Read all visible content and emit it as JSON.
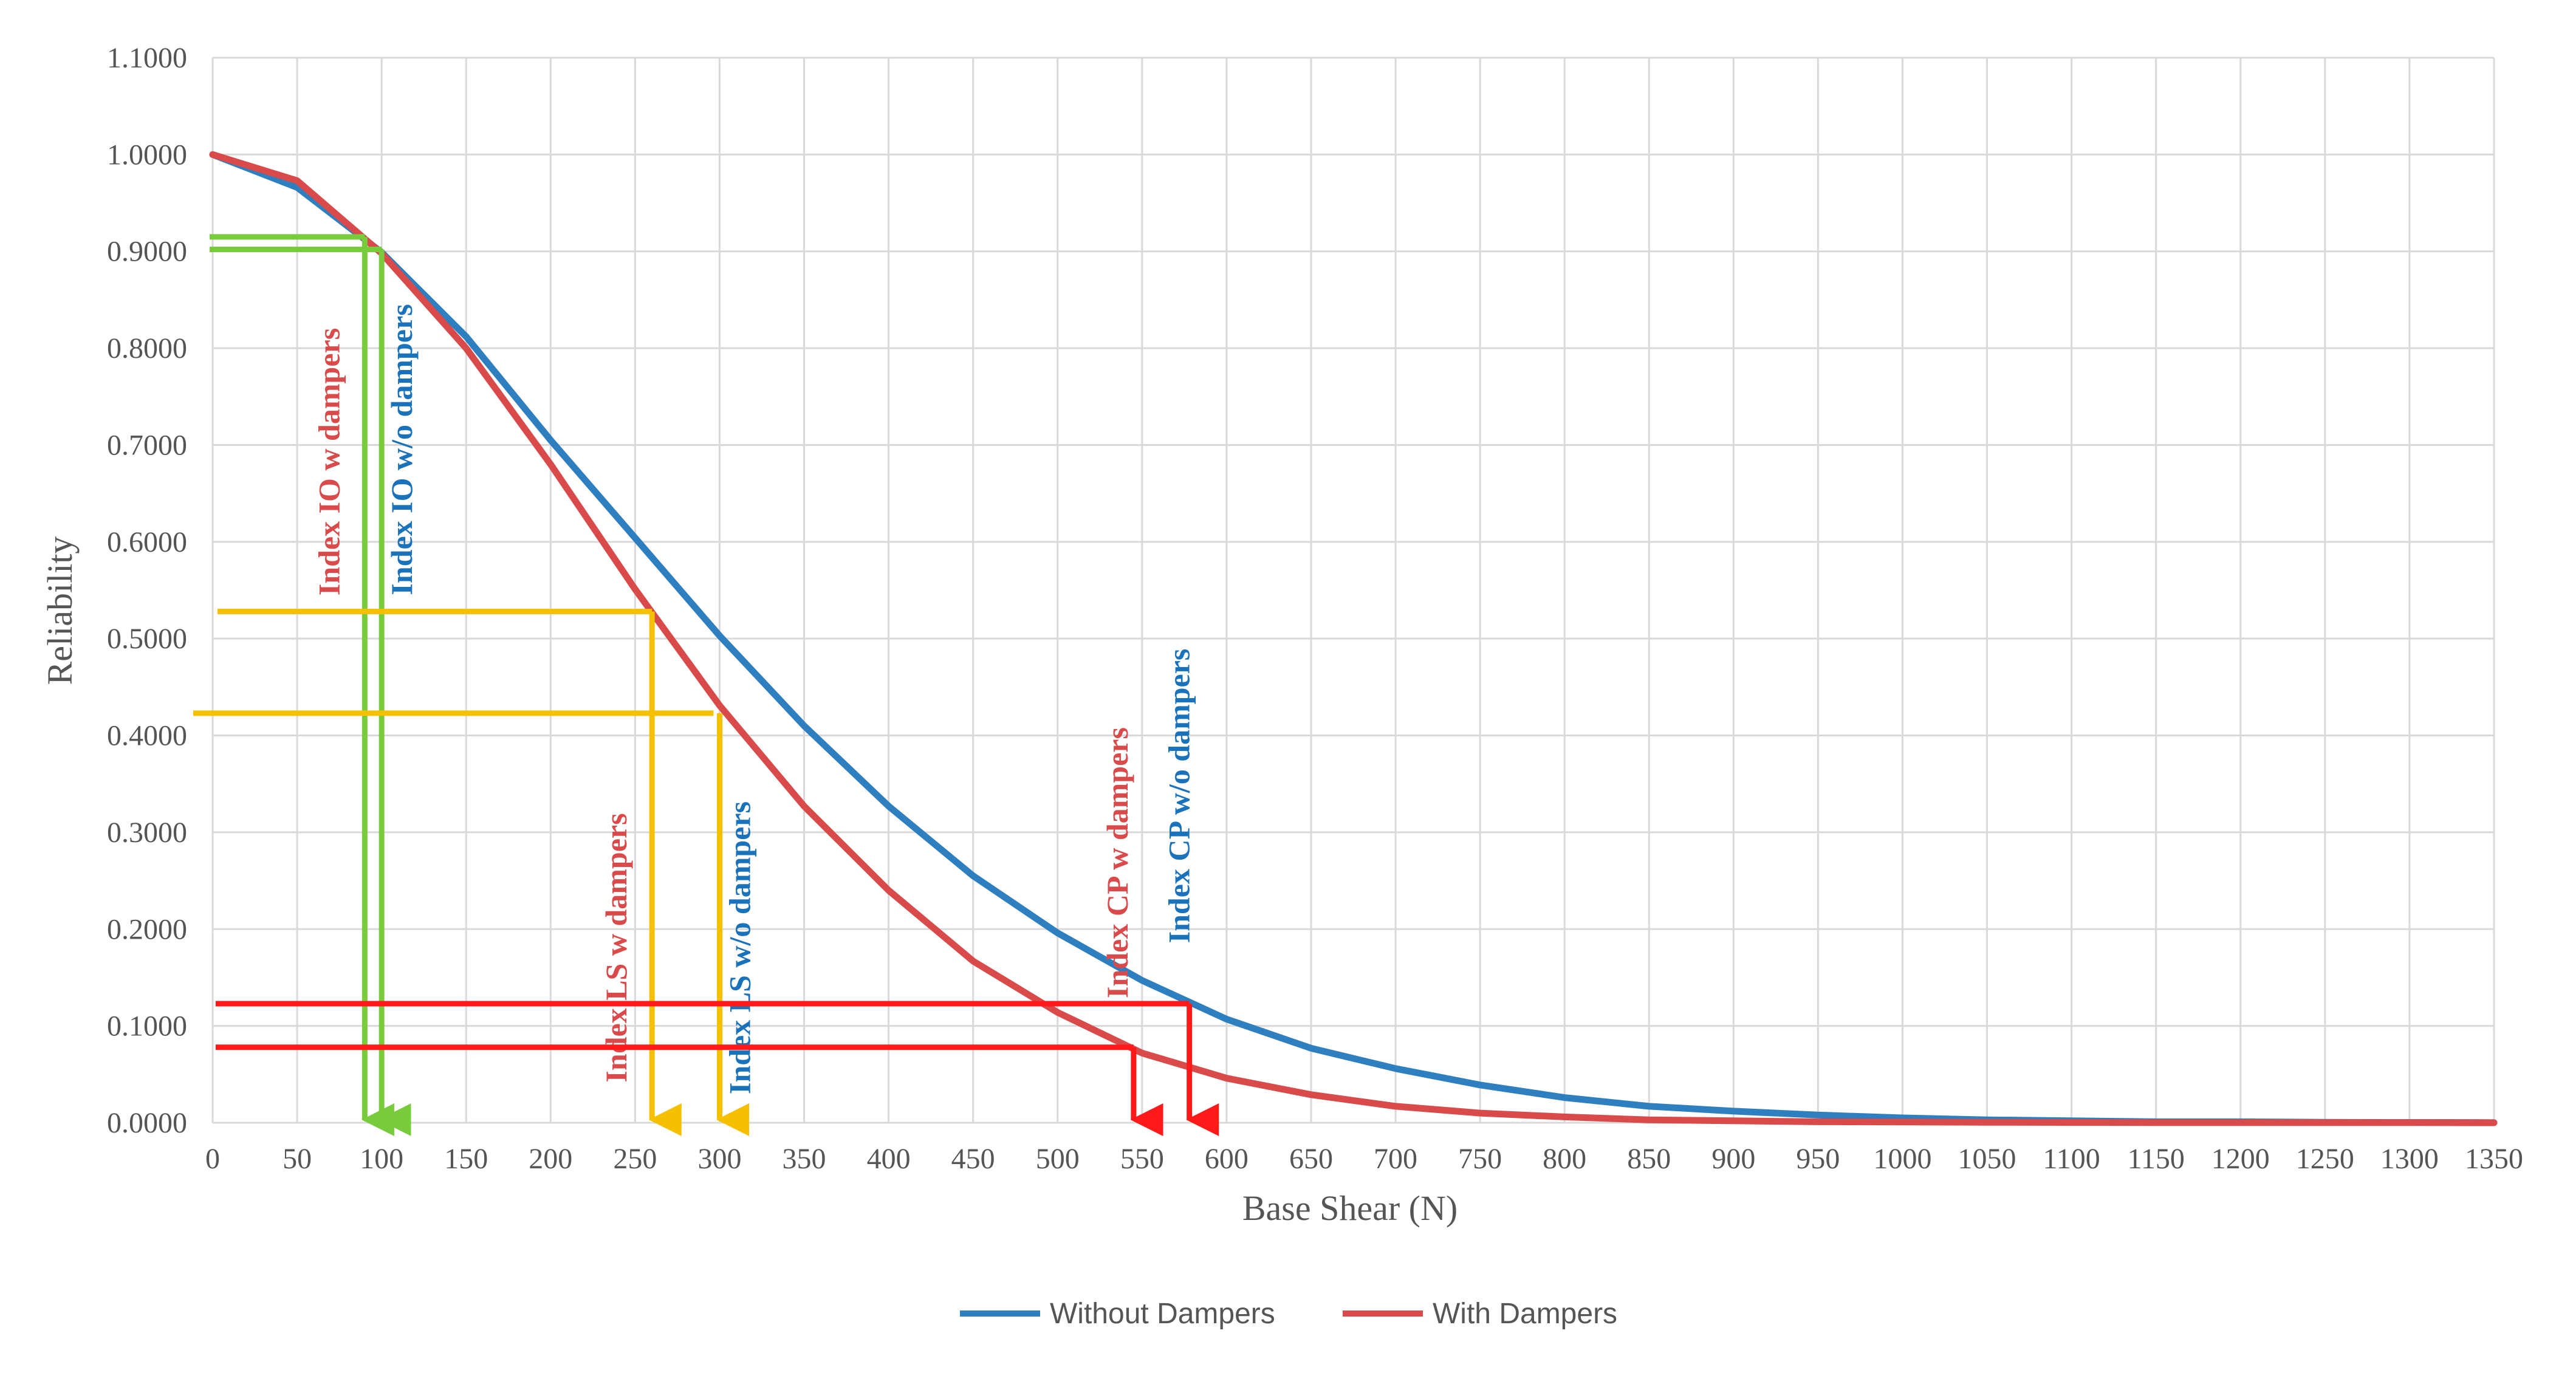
{
  "chart_data": {
    "type": "line",
    "title": "",
    "xlabel": "Base Shear (N)",
    "ylabel": "Reliability",
    "xlim": [
      0,
      1350
    ],
    "ylim": [
      0,
      1.1
    ],
    "x_ticks": [
      "0",
      "50",
      "100",
      "150",
      "200",
      "250",
      "300",
      "350",
      "400",
      "450",
      "500",
      "550",
      "600",
      "650",
      "700",
      "750",
      "800",
      "850",
      "900",
      "950",
      "1000",
      "1050",
      "1100",
      "1150",
      "1200",
      "1250",
      "1300",
      "1350"
    ],
    "y_ticks": [
      "0.0000",
      "0.1000",
      "0.2000",
      "0.3000",
      "0.4000",
      "0.5000",
      "0.6000",
      "0.7000",
      "0.8000",
      "0.9000",
      "1.0000",
      "1.1000"
    ],
    "grid": true,
    "legend_position": "bottom",
    "x": [
      0,
      50,
      100,
      150,
      200,
      250,
      300,
      350,
      400,
      450,
      500,
      550,
      600,
      650,
      700,
      750,
      800,
      850,
      900,
      950,
      1000,
      1050,
      1100,
      1150,
      1200,
      1250,
      1300,
      1350
    ],
    "series": [
      {
        "name": "Without Dampers",
        "color": "#2e7fbf",
        "values": [
          1.0,
          0.966,
          0.899,
          0.812,
          0.705,
          0.604,
          0.503,
          0.41,
          0.327,
          0.255,
          0.196,
          0.147,
          0.107,
          0.077,
          0.056,
          0.039,
          0.026,
          0.017,
          0.012,
          0.008,
          0.005,
          0.003,
          0.002,
          0.001,
          0.001,
          0.0005,
          0.0003,
          0.0002
        ]
      },
      {
        "name": "With Dampers",
        "color": "#d94a4a",
        "values": [
          1.0,
          0.973,
          0.898,
          0.8,
          0.68,
          0.551,
          0.431,
          0.327,
          0.24,
          0.167,
          0.114,
          0.072,
          0.046,
          0.029,
          0.017,
          0.01,
          0.006,
          0.003,
          0.002,
          0.001,
          0.0008,
          0.0005,
          0.0003,
          0.0002,
          0.0001,
          0.0001,
          0.0001,
          0.0
        ]
      }
    ],
    "annotations": [
      {
        "label": "Index IO w dampers",
        "color": "#d94a4a",
        "line_color": "#78cc3c",
        "x": 90,
        "y": 0.915
      },
      {
        "label": "Index IO w/o dampers",
        "color": "#1a72bb",
        "line_color": "#78cc3c",
        "x": 100,
        "y": 0.902
      },
      {
        "label": "Index LS w dampers",
        "color": "#d94a4a",
        "line_color": "#f5c000",
        "x": 260,
        "y": 0.528
      },
      {
        "label": "Index LS w/o dampers",
        "color": "#1a72bb",
        "line_color": "#f5c000",
        "x": 300,
        "y": 0.423
      },
      {
        "label": "Index CP w dampers",
        "color": "#d94a4a",
        "line_color": "#ff1a1a",
        "x": 545,
        "y": 0.078
      },
      {
        "label": "Index CP w/o dampers",
        "color": "#1a72bb",
        "line_color": "#ff1a1a",
        "x": 578,
        "y": 0.123
      }
    ]
  }
}
